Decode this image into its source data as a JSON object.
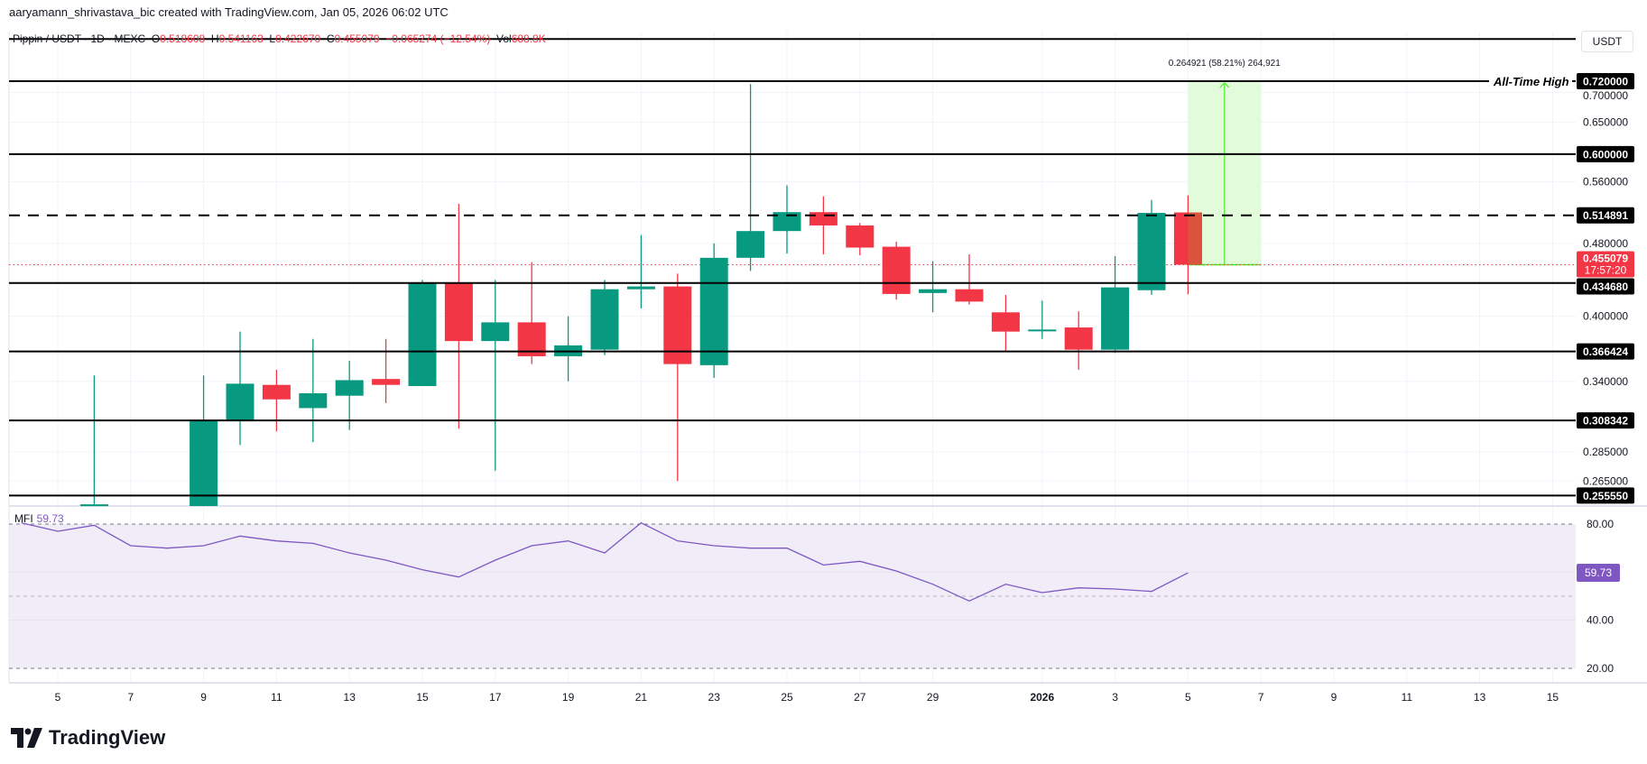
{
  "header": {
    "attribution": "aaryamann_shrivastava_bic created with TradingView.com, Jan 05, 2026 06:02 UTC"
  },
  "legend": {
    "symbol": "Pippin / USDT · 1D · MEXC",
    "o_label": "O",
    "o": "0.518608",
    "h_label": "H",
    "h": "0.541163",
    "l_label": "L",
    "l": "0.422670",
    "c_label": "C",
    "c": "0.455079",
    "change": "−0.065274 (−12.54%)",
    "vol_label": "Vol",
    "vol": "688.8K"
  },
  "currency_button": "USDT",
  "brand": "TradingView",
  "colors": {
    "up": "#089981",
    "down": "#f23645",
    "mfi": "#7e57c2",
    "mfi_fill": "#f0edf8",
    "position_fill": "#e2fcdb",
    "position_line": "#4cec2a"
  },
  "chart_data": [
    {
      "type": "candlestick",
      "scale": "log",
      "grid": true,
      "ylim": [
        0.25,
        0.8
      ],
      "price_ticks": [
        "0.700000",
        "0.650000",
        "0.560000",
        "0.480000",
        "0.400000",
        "0.340000",
        "0.285000",
        "0.265000"
      ],
      "x_ticks": [
        {
          "date": "2025-12-05",
          "label": "5"
        },
        {
          "date": "2025-12-07",
          "label": "7"
        },
        {
          "date": "2025-12-09",
          "label": "9"
        },
        {
          "date": "2025-12-11",
          "label": "11"
        },
        {
          "date": "2025-12-13",
          "label": "13"
        },
        {
          "date": "2025-12-15",
          "label": "15"
        },
        {
          "date": "2025-12-17",
          "label": "17"
        },
        {
          "date": "2025-12-19",
          "label": "19"
        },
        {
          "date": "2025-12-21",
          "label": "21"
        },
        {
          "date": "2025-12-23",
          "label": "23"
        },
        {
          "date": "2025-12-25",
          "label": "25"
        },
        {
          "date": "2025-12-27",
          "label": "27"
        },
        {
          "date": "2025-12-29",
          "label": "29"
        },
        {
          "date": "2026-01-01",
          "label": "2026"
        },
        {
          "date": "2026-01-03",
          "label": "3"
        },
        {
          "date": "2026-01-05",
          "label": "5"
        },
        {
          "date": "2026-01-07",
          "label": "7"
        },
        {
          "date": "2026-01-09",
          "label": "9"
        },
        {
          "date": "2026-01-11",
          "label": "11"
        },
        {
          "date": "2026-01-13",
          "label": "13"
        },
        {
          "date": "2026-01-15",
          "label": "15"
        }
      ],
      "candles": [
        {
          "date": "2025-12-06",
          "o": 0.24,
          "h": 0.345,
          "l": 0.235,
          "c": 0.25
        },
        {
          "date": "2025-12-09",
          "o": 0.24,
          "h": 0.345,
          "l": 0.24,
          "c": 0.308
        },
        {
          "date": "2025-12-10",
          "o": 0.308,
          "h": 0.385,
          "l": 0.29,
          "c": 0.338
        },
        {
          "date": "2025-12-11",
          "o": 0.337,
          "h": 0.35,
          "l": 0.3,
          "c": 0.325
        },
        {
          "date": "2025-12-12",
          "o": 0.318,
          "h": 0.378,
          "l": 0.292,
          "c": 0.33
        },
        {
          "date": "2025-12-13",
          "o": 0.328,
          "h": 0.358,
          "l": 0.301,
          "c": 0.341
        },
        {
          "date": "2025-12-14",
          "o": 0.342,
          "h": 0.378,
          "l": 0.322,
          "c": 0.337
        },
        {
          "date": "2025-12-15",
          "o": 0.336,
          "h": 0.438,
          "l": 0.336,
          "c": 0.435
        },
        {
          "date": "2025-12-16",
          "o": 0.435,
          "h": 0.53,
          "l": 0.302,
          "c": 0.376
        },
        {
          "date": "2025-12-17",
          "o": 0.376,
          "h": 0.438,
          "l": 0.272,
          "c": 0.394
        },
        {
          "date": "2025-12-18",
          "o": 0.394,
          "h": 0.458,
          "l": 0.355,
          "c": 0.362
        },
        {
          "date": "2025-12-19",
          "o": 0.362,
          "h": 0.4,
          "l": 0.34,
          "c": 0.372
        },
        {
          "date": "2025-12-20",
          "o": 0.368,
          "h": 0.438,
          "l": 0.363,
          "c": 0.428
        },
        {
          "date": "2025-12-21",
          "o": 0.428,
          "h": 0.49,
          "l": 0.408,
          "c": 0.431
        },
        {
          "date": "2025-12-22",
          "o": 0.431,
          "h": 0.445,
          "l": 0.265,
          "c": 0.355
        },
        {
          "date": "2025-12-23",
          "o": 0.354,
          "h": 0.48,
          "l": 0.343,
          "c": 0.463
        },
        {
          "date": "2025-12-24",
          "o": 0.463,
          "h": 0.715,
          "l": 0.448,
          "c": 0.495
        },
        {
          "date": "2025-12-25",
          "o": 0.495,
          "h": 0.555,
          "l": 0.468,
          "c": 0.519
        },
        {
          "date": "2025-12-26",
          "o": 0.519,
          "h": 0.54,
          "l": 0.467,
          "c": 0.502
        },
        {
          "date": "2025-12-27",
          "o": 0.502,
          "h": 0.505,
          "l": 0.466,
          "c": 0.475
        },
        {
          "date": "2025-12-28",
          "o": 0.476,
          "h": 0.482,
          "l": 0.417,
          "c": 0.423
        },
        {
          "date": "2025-12-29",
          "o": 0.424,
          "h": 0.459,
          "l": 0.404,
          "c": 0.428
        },
        {
          "date": "2025-12-30",
          "o": 0.428,
          "h": 0.467,
          "l": 0.412,
          "c": 0.415
        },
        {
          "date": "2025-12-31",
          "o": 0.404,
          "h": 0.422,
          "l": 0.367,
          "c": 0.385
        },
        {
          "date": "2026-01-01",
          "o": 0.386,
          "h": 0.416,
          "l": 0.378,
          "c": 0.387
        },
        {
          "date": "2026-01-02",
          "o": 0.389,
          "h": 0.405,
          "l": 0.35,
          "c": 0.368
        },
        {
          "date": "2026-01-03",
          "o": 0.368,
          "h": 0.465,
          "l": 0.365,
          "c": 0.43
        },
        {
          "date": "2026-01-04",
          "o": 0.427,
          "h": 0.535,
          "l": 0.422,
          "c": 0.518
        },
        {
          "date": "2026-01-05",
          "o": 0.518608,
          "h": 0.541163,
          "l": 0.42267,
          "c": 0.455079
        }
      ],
      "horizontal_levels": [
        {
          "price": 0.8,
          "label": "",
          "style": "solid"
        },
        {
          "price": 0.72,
          "label": "0.720000",
          "style": "solid",
          "annotation": "All-Time High"
        },
        {
          "price": 0.6,
          "label": "0.600000",
          "style": "solid"
        },
        {
          "price": 0.514891,
          "label": "0.514891",
          "style": "dashed"
        },
        {
          "price": 0.43468,
          "label": "0.434680",
          "style": "solid"
        },
        {
          "price": 0.366424,
          "label": "0.366424",
          "style": "solid"
        },
        {
          "price": 0.308342,
          "label": "0.308342",
          "style": "solid"
        },
        {
          "price": 0.25555,
          "label": "0.255550",
          "style": "solid"
        }
      ],
      "last_price": {
        "price": 0.455079,
        "label": "0.455079",
        "countdown": "17:57:20"
      },
      "long_position": {
        "from": "2026-01-05",
        "to": "2026-01-07",
        "entry": 0.455079,
        "target": 0.72,
        "label": "0.264921 (58.21%) 264,921"
      }
    },
    {
      "type": "line",
      "title": "MFI",
      "value_label": "59.73",
      "ylim": [
        15,
        85
      ],
      "y_ticks": [
        "80.00",
        "40.00",
        "20.00"
      ],
      "bands": [
        80,
        50,
        20
      ],
      "x": [
        "2025-12-04",
        "2025-12-05",
        "2025-12-06",
        "2025-12-07",
        "2025-12-08",
        "2025-12-09",
        "2025-12-10",
        "2025-12-11",
        "2025-12-12",
        "2025-12-13",
        "2025-12-14",
        "2025-12-15",
        "2025-12-16",
        "2025-12-17",
        "2025-12-18",
        "2025-12-19",
        "2025-12-20",
        "2025-12-21",
        "2025-12-22",
        "2025-12-23",
        "2025-12-24",
        "2025-12-25",
        "2025-12-26",
        "2025-12-27",
        "2025-12-28",
        "2025-12-29",
        "2025-12-30",
        "2025-12-31",
        "2026-01-01",
        "2026-01-02",
        "2026-01-03",
        "2026-01-04",
        "2026-01-05"
      ],
      "values": [
        80.5,
        77,
        79.5,
        71,
        70,
        71,
        75,
        73,
        72,
        68,
        65,
        61,
        58,
        65,
        71,
        73,
        68,
        80.5,
        73,
        71,
        70,
        70,
        63,
        64.5,
        60.5,
        55,
        48,
        55,
        51.5,
        53.5,
        53,
        52,
        59.73
      ]
    }
  ]
}
